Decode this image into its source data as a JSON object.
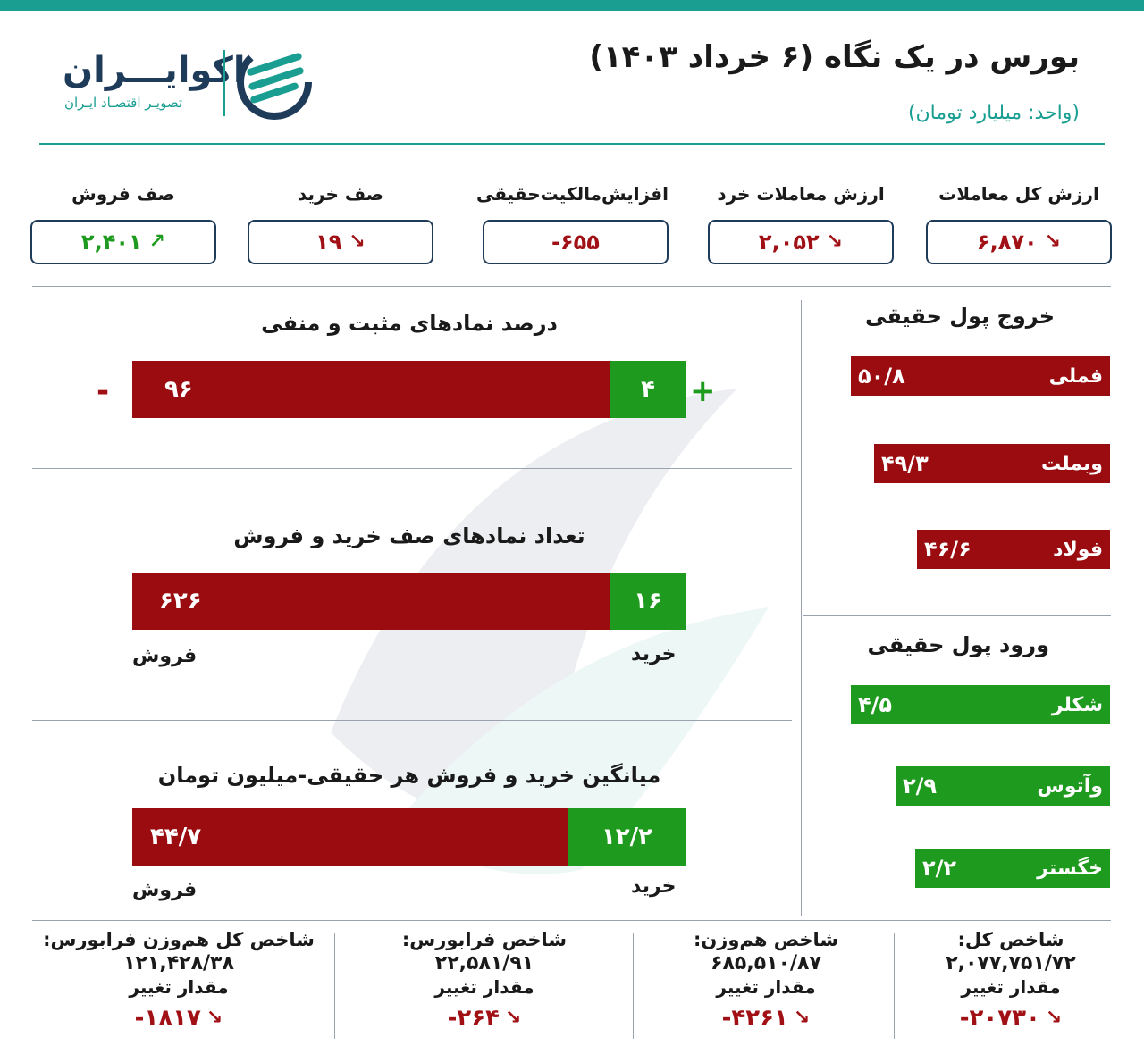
{
  "header": {
    "title": "بورس در یک نگاه (۶ خرداد ۱۴۰۳)",
    "unit": "(واحد: میلیارد تومان)"
  },
  "logo": {
    "name": "اکوایـــران",
    "subtitle": "تصویـر اقتصـاد ایـران"
  },
  "colors": {
    "accent": "#1a9e92",
    "negative": "#9b0c10",
    "positive": "#1e9a1e",
    "navy": "#1f3b5a"
  },
  "stats": [
    {
      "label": "ارزش کل معاملات",
      "value": "۶,۸۷۰",
      "trend": "down",
      "icon": "arrow-down-right-icon"
    },
    {
      "label": "ارزش معاملات خرد",
      "value": "۲,۰۵۲",
      "trend": "down",
      "icon": "arrow-down-right-icon"
    },
    {
      "label": "افزایش‌مالکیت‌حقیقی",
      "value": "-۶۵۵",
      "trend": "none",
      "icon": ""
    },
    {
      "label": "صف خرید",
      "value": "۱۹",
      "trend": "down",
      "icon": "arrow-down-right-icon"
    },
    {
      "label": "صف فروش",
      "value": "۲,۴۰۱",
      "trend": "up",
      "icon": "arrow-up-right-icon"
    }
  ],
  "chart_data": [
    {
      "type": "bar",
      "title": "درصد نمادهای مثبت و منفی",
      "series": [
        {
          "name": "-",
          "values": [
            96
          ],
          "label": "۹۶",
          "color": "#9b0c10"
        },
        {
          "name": "+",
          "values": [
            4
          ],
          "label": "۴",
          "color": "#1e9a1e"
        }
      ]
    },
    {
      "type": "bar",
      "title": "تعداد نمادهای صف خرید و فروش",
      "series": [
        {
          "name": "فروش",
          "values": [
            626
          ],
          "label": "۶۲۶",
          "color": "#9b0c10"
        },
        {
          "name": "خرید",
          "values": [
            16
          ],
          "label": "۱۶",
          "color": "#1e9a1e"
        }
      ]
    },
    {
      "type": "bar",
      "title": "میانگین خرید و فروش هر حقیقی-میلیون تومان",
      "series": [
        {
          "name": "فروش",
          "values": [
            44.7
          ],
          "label": "۴۴/۷",
          "color": "#9b0c10"
        },
        {
          "name": "خرید",
          "values": [
            12.2
          ],
          "label": "۱۲/۲",
          "color": "#1e9a1e"
        }
      ]
    },
    {
      "type": "bar",
      "title": "خروج پول حقیقی",
      "categories": [
        "فملی",
        "وبملت",
        "فولاد"
      ],
      "values": [
        50.8,
        49.3,
        46.6
      ],
      "labels": [
        "۵۰/۸",
        "۴۹/۳",
        "۴۶/۶"
      ],
      "color": "#9b0c10"
    },
    {
      "type": "bar",
      "title": "ورود پول حقیقی",
      "categories": [
        "شکلر",
        "وآتوس",
        "خگستر"
      ],
      "values": [
        4.5,
        2.9,
        2.2
      ],
      "labels": [
        "۴/۵",
        "۲/۹",
        "۲/۲"
      ],
      "color": "#1e9a1e"
    }
  ],
  "indices": [
    {
      "label": "شاخص کل:",
      "value": "۲,۰۷۷,۷۵۱/۷۲",
      "change_label": "مقدار تغییر",
      "change": "-۲۰۷۳۰",
      "icon": "arrow-down-right-icon"
    },
    {
      "label": "شاخص هم‌وزن:",
      "value": "۶۸۵,۵۱۰/۸۷",
      "change_label": "مقدار تغییر",
      "change": "-۴۲۶۱",
      "icon": "arrow-down-right-icon"
    },
    {
      "label": "شاخص فرابورس:",
      "value": "۲۲,۵۸۱/۹۱",
      "change_label": "مقدار تغییر",
      "change": "-۲۶۴",
      "icon": "arrow-down-right-icon"
    },
    {
      "label": "شاخص کل هم‌وزن فرابورس:",
      "value": "۱۲۱,۴۲۸/۳۸",
      "change_label": "مقدار تغییر",
      "change": "-۱۸۱۷",
      "icon": "arrow-down-right-icon"
    }
  ]
}
